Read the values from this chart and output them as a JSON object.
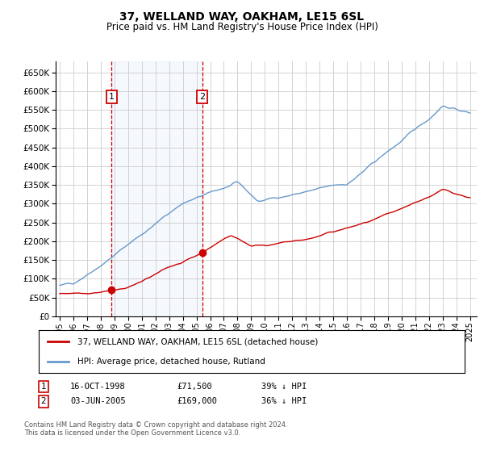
{
  "title": "37, WELLAND WAY, OAKHAM, LE15 6SL",
  "subtitle": "Price paid vs. HM Land Registry's House Price Index (HPI)",
  "legend_label_red": "37, WELLAND WAY, OAKHAM, LE15 6SL (detached house)",
  "legend_label_blue": "HPI: Average price, detached house, Rutland",
  "footnote": "Contains HM Land Registry data © Crown copyright and database right 2024.\nThis data is licensed under the Open Government Licence v3.0.",
  "transaction1_date": "16-OCT-1998",
  "transaction1_price": "£71,500",
  "transaction1_hpi": "39% ↓ HPI",
  "transaction2_date": "03-JUN-2005",
  "transaction2_price": "£169,000",
  "transaction2_hpi": "36% ↓ HPI",
  "ylim": [
    0,
    680000
  ],
  "yticks": [
    0,
    50000,
    100000,
    150000,
    200000,
    250000,
    300000,
    350000,
    400000,
    450000,
    500000,
    550000,
    600000,
    650000
  ],
  "red_color": "#cc0000",
  "blue_color": "#6699cc",
  "vline_color": "#cc0000",
  "t1_year": 1998.79,
  "t2_year": 2005.42,
  "t1_price": 71500,
  "t2_price": 169000,
  "background_color": "#ffffff",
  "grid_color": "#cccccc",
  "shading_color": "#ccddf0"
}
